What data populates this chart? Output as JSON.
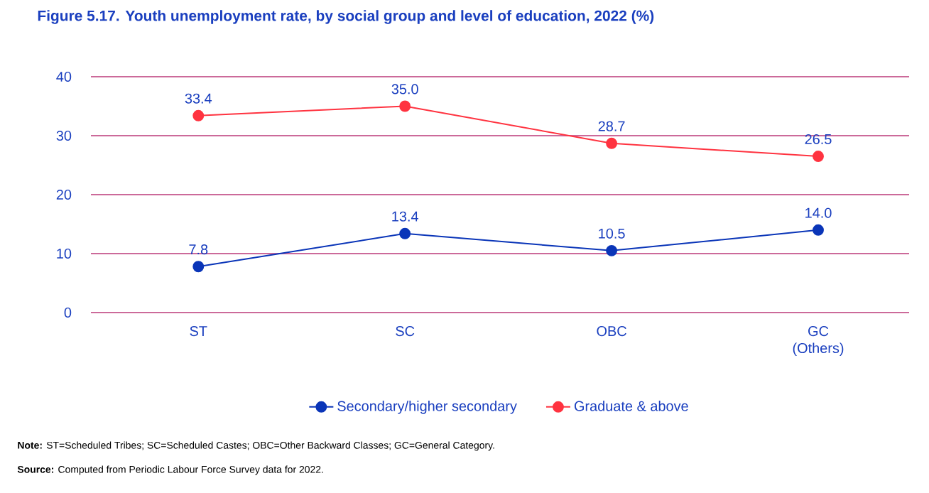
{
  "chart_data": {
    "type": "line",
    "title": "Figure 5.17. Youth unemployment rate, by social group and level of education, 2022 (%)",
    "categories": [
      "ST",
      "SC",
      "OBC",
      "GC (Others)"
    ],
    "series": [
      {
        "name": "Secondary/higher secondary",
        "color": "#0a35b8",
        "values": [
          7.8,
          13.4,
          10.5,
          14.0
        ],
        "value_labels": [
          "7.8",
          "13.4",
          "10.5",
          "14.0"
        ]
      },
      {
        "name": "Graduate & above",
        "color": "#ff3340",
        "values": [
          33.4,
          35.0,
          28.7,
          26.5
        ],
        "value_labels": [
          "33.4",
          "35.0",
          "28.7",
          "26.5"
        ]
      }
    ],
    "ylim": [
      0,
      40
    ],
    "yticks": [
      0,
      10,
      20,
      30,
      40
    ],
    "grid": "y",
    "legend": "bottom",
    "marker": "circle",
    "line_style": "solid",
    "annotations": [
      "**Note:** ST=Scheduled Tribes; SC=Scheduled Castes; OBC=Other Backward Classes; GC=General Category.",
      "**Source:** Computed from Periodic Labour Force Survey data for 2022."
    ]
  }
}
